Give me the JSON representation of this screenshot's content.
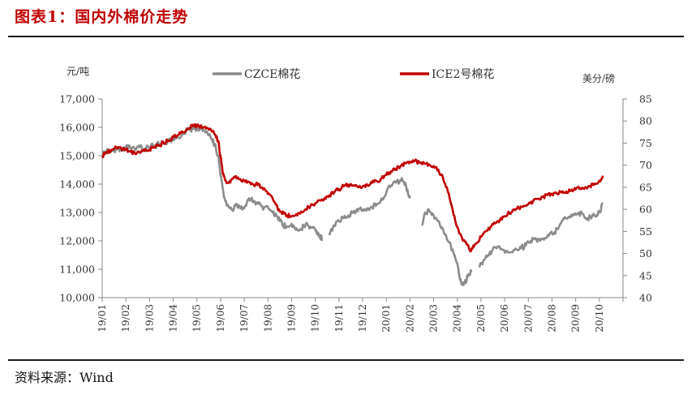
{
  "page": {
    "title": "图表1：国内外棉价走势",
    "source": "资料来源：Wind"
  },
  "chart_data": {
    "type": "line",
    "title": "",
    "left_axis_unit": "元/吨",
    "right_axis_unit": "美分/磅",
    "y_left": {
      "min": 10000,
      "max": 17000,
      "ticks": [
        "10,000",
        "11,000",
        "12,000",
        "13,000",
        "14,000",
        "15,000",
        "16,000",
        "17,000"
      ]
    },
    "y_right": {
      "min": 40,
      "max": 85,
      "ticks": [
        "40",
        "45",
        "50",
        "55",
        "60",
        "65",
        "70",
        "75",
        "80",
        "85"
      ]
    },
    "x_ticks": [
      "19/01",
      "19/02",
      "19/03",
      "19/04",
      "19/05",
      "19/06",
      "19/07",
      "19/08",
      "19/09",
      "19/10",
      "19/11",
      "19/12",
      "20/01",
      "20/02",
      "20/03",
      "20/04",
      "20/05",
      "20/06",
      "20/07",
      "20/08",
      "20/09",
      "20/10"
    ],
    "grid": false,
    "legend_position": "top-center",
    "series": [
      {
        "name": "CZCE棉花",
        "axis": "left",
        "color": "#8c8c8c",
        "segments": [
          {
            "x": [
              0.0,
              0.15,
              0.3,
              0.5,
              0.7,
              0.85,
              1.0,
              1.2,
              1.4,
              1.6,
              1.8,
              2.0,
              2.2,
              2.4,
              2.6,
              2.8,
              3.0,
              3.2,
              3.4,
              3.6,
              3.8,
              4.0,
              4.15,
              4.3,
              4.45,
              4.6,
              4.75,
              4.9,
              5.0,
              5.1,
              5.2,
              5.35,
              5.5,
              5.65,
              5.8,
              6.0,
              6.2,
              6.4,
              6.6,
              6.8,
              7.0,
              7.2,
              7.35,
              7.5,
              7.65,
              7.8,
              8.0,
              8.2,
              8.4,
              8.6,
              8.8,
              9.0,
              9.1,
              9.2,
              9.3
            ],
            "y": [
              15000,
              15150,
              15200,
              15150,
              15250,
              15200,
              15300,
              15250,
              15200,
              15300,
              15250,
              15300,
              15350,
              15400,
              15450,
              15500,
              15550,
              15650,
              15750,
              15900,
              15950,
              15950,
              15950,
              15900,
              15800,
              15600,
              15400,
              15000,
              14300,
              13800,
              13400,
              13200,
              13100,
              13300,
              13200,
              13150,
              13500,
              13400,
              13300,
              13100,
              13200,
              13000,
              12900,
              12700,
              12550,
              12500,
              12600,
              12450,
              12400,
              12600,
              12500,
              12400,
              12300,
              12150,
              12050
            ]
          },
          {
            "x": [
              9.6,
              9.8,
              10.0,
              10.2,
              10.4,
              10.6,
              10.8,
              11.0,
              11.2,
              11.4,
              11.6,
              11.8,
              12.0,
              12.2,
              12.4,
              12.6,
              12.75,
              12.9,
              13.0
            ],
            "y": [
              12200,
              12550,
              12700,
              12800,
              12900,
              13000,
              13050,
              13100,
              13150,
              13200,
              13300,
              13500,
              13700,
              13950,
              14050,
              14150,
              14050,
              13800,
              13500
            ]
          },
          {
            "x": [
              13.5,
              13.6,
              13.8,
              14.0,
              14.2,
              14.4,
              14.6,
              14.8,
              15.0,
              15.1,
              15.2,
              15.3,
              15.45,
              15.6
            ],
            "y": [
              12550,
              12900,
              13100,
              12900,
              12700,
              12400,
              12000,
              11700,
              11200,
              10700,
              10450,
              10500,
              10750,
              10900
            ]
          },
          {
            "x": [
              15.9,
              16.1,
              16.3,
              16.5,
              16.7,
              16.9,
              17.1,
              17.3,
              17.5,
              17.7,
              17.9,
              18.1,
              18.3,
              18.5,
              18.7,
              18.9,
              19.1,
              19.3,
              19.5,
              19.7,
              19.9,
              20.1,
              20.3,
              20.5,
              20.7,
              20.85,
              21.0,
              21.15
            ],
            "y": [
              11100,
              11300,
              11500,
              11700,
              11800,
              11700,
              11650,
              11600,
              11700,
              11750,
              11850,
              12000,
              12100,
              12000,
              12100,
              12250,
              12300,
              12500,
              12800,
              12850,
              12950,
              12950,
              12950,
              12800,
              12900,
              12850,
              13000,
              13300
            ]
          }
        ]
      },
      {
        "name": "ICE2号棉花",
        "axis": "right",
        "color": "#c00000",
        "segments": [
          {
            "x": [
              0.0,
              0.2,
              0.4,
              0.6,
              0.8,
              1.0,
              1.2,
              1.4,
              1.6,
              1.8,
              2.0,
              2.2,
              2.4,
              2.6,
              2.8,
              3.0,
              3.2,
              3.4,
              3.6,
              3.8,
              4.0,
              4.15,
              4.3,
              4.45,
              4.6,
              4.75,
              4.9,
              5.0,
              5.1,
              5.2,
              5.35,
              5.5,
              5.65,
              5.8,
              6.0,
              6.2,
              6.4,
              6.6,
              6.8,
              7.0,
              7.2,
              7.35,
              7.5,
              7.65,
              7.8,
              8.0,
              8.2,
              8.4,
              8.6,
              8.8,
              9.0,
              9.2,
              9.4,
              9.6,
              9.8,
              10.0,
              10.2,
              10.4,
              10.6,
              10.8,
              11.0,
              11.2,
              11.4,
              11.6,
              11.8,
              12.0,
              12.2,
              12.4,
              12.6,
              12.8,
              13.0,
              13.2,
              13.4,
              13.6,
              13.8,
              14.0,
              14.2,
              14.4,
              14.6,
              14.8,
              15.0,
              15.2,
              15.4,
              15.55,
              15.7,
              15.85,
              16.0,
              16.2,
              16.4,
              16.6,
              16.8,
              17.0,
              17.2,
              17.4,
              17.6,
              17.8,
              18.0,
              18.2,
              18.4,
              18.6,
              18.8,
              19.0,
              19.2,
              19.4,
              19.6,
              19.8,
              20.0,
              20.2,
              20.4,
              20.6,
              20.8,
              21.0,
              21.15
            ],
            "y": [
              72.0,
              73.0,
              73.5,
              74.0,
              73.8,
              73.5,
              73.0,
              72.5,
              72.8,
              73.2,
              73.6,
              74.0,
              74.5,
              75.0,
              75.6,
              76.2,
              76.8,
              77.5,
              78.2,
              78.8,
              79.0,
              78.8,
              78.6,
              78.4,
              78.0,
              77.0,
              75.5,
              72.0,
              68.0,
              66.5,
              66.0,
              67.0,
              67.5,
              66.8,
              66.5,
              66.2,
              65.5,
              65.8,
              64.5,
              63.5,
              62.5,
              61.0,
              59.5,
              59.0,
              58.6,
              58.5,
              58.9,
              59.5,
              60.0,
              60.8,
              61.4,
              62.0,
              62.6,
              63.2,
              63.8,
              64.6,
              65.2,
              65.6,
              65.4,
              65.0,
              65.2,
              65.6,
              66.0,
              66.4,
              67.0,
              67.8,
              68.6,
              69.2,
              69.8,
              70.4,
              70.8,
              71.0,
              70.6,
              70.4,
              70.2,
              69.8,
              69.0,
              67.0,
              64.0,
              60.0,
              56.0,
              53.5,
              52.0,
              50.5,
              51.5,
              52.5,
              53.8,
              55.0,
              56.0,
              56.8,
              57.6,
              58.4,
              59.2,
              60.0,
              60.4,
              60.8,
              61.2,
              61.8,
              62.4,
              62.8,
              63.2,
              63.4,
              63.6,
              63.8,
              64.0,
              64.2,
              64.5,
              64.8,
              65.0,
              65.3,
              65.8,
              66.5,
              67.6
            ]
          }
        ]
      }
    ]
  }
}
